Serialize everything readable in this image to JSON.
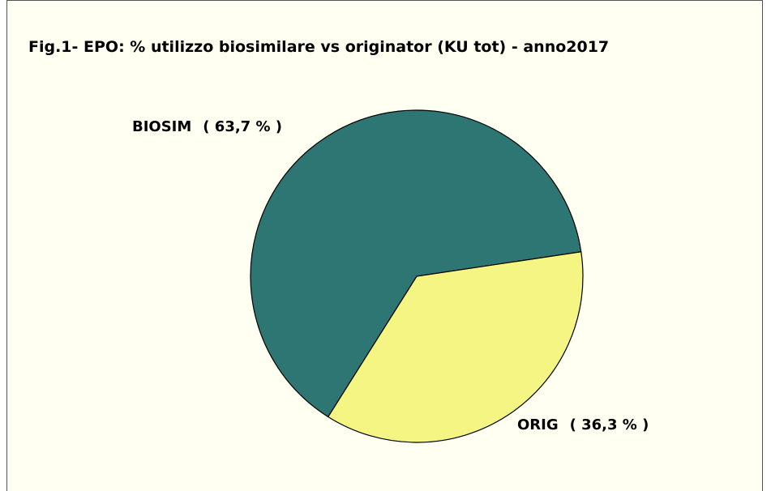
{
  "chart_data": {
    "type": "pie",
    "title": "Fig.1- EPO: % utilizzo biosimilare vs originator (KU tot) - anno2017",
    "categories": [
      "BIOSIM",
      "ORIG"
    ],
    "values": [
      63.7,
      36.3
    ],
    "value_labels": [
      "( 63,7 % )",
      "( 36,3 % )"
    ],
    "colors": [
      "#2e7673",
      "#f5f584"
    ]
  }
}
